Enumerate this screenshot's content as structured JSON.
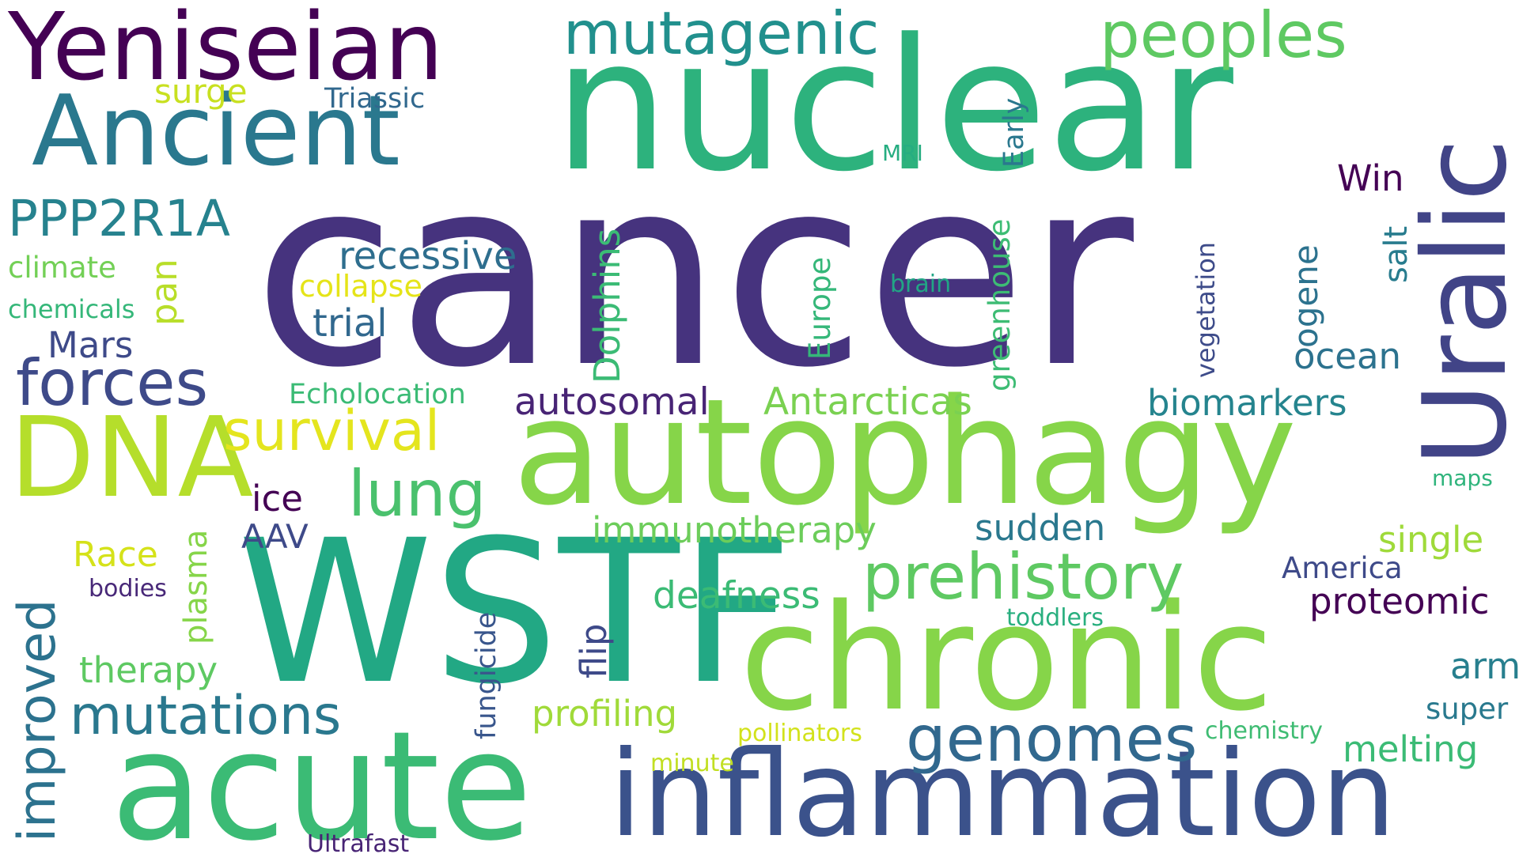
{
  "words": {
    "cancer": {
      "text": "cancer",
      "color": "#46337e"
    },
    "nuclear": {
      "text": "nuclear",
      "color": "#2db27d"
    },
    "wstf": {
      "text": "WSTF",
      "color": "#22a884"
    },
    "autophagy": {
      "text": "autophagy",
      "color": "#86d549"
    },
    "chronic": {
      "text": "chronic",
      "color": "#86d549"
    },
    "acute": {
      "text": "acute",
      "color": "#3bbb75"
    },
    "inflammation": {
      "text": "inflammation",
      "color": "#3b528b"
    },
    "uralic": {
      "text": "Uralic",
      "color": "#414487"
    },
    "yeniseian": {
      "text": "Yeniseian",
      "color": "#440154"
    },
    "ancient": {
      "text": "Ancient",
      "color": "#2a788e"
    },
    "dna": {
      "text": "DNA",
      "color": "#b5de2b"
    },
    "mutagenic": {
      "text": "mutagenic",
      "color": "#21908d"
    },
    "peoples": {
      "text": "peoples",
      "color": "#5ec962"
    },
    "prehistory": {
      "text": "prehistory",
      "color": "#5ec962"
    },
    "genomes": {
      "text": "genomes",
      "color": "#31688e"
    },
    "ppp2r1a": {
      "text": "PPP2R1A",
      "color": "#26828e"
    },
    "forces": {
      "text": "forces",
      "color": "#3e4a89"
    },
    "survival": {
      "text": "survival",
      "color": "#e4e51e"
    },
    "lung": {
      "text": "lung",
      "color": "#4ac16d"
    },
    "mutations": {
      "text": "mutations",
      "color": "#2a788e"
    },
    "improved": {
      "text": "improved",
      "color": "#2c728e"
    },
    "surge": {
      "text": "surge",
      "color": "#c8e020"
    },
    "triassic": {
      "text": "Triassic",
      "color": "#31688e"
    },
    "recessive": {
      "text": "recessive",
      "color": "#2e6e8e"
    },
    "trial": {
      "text": "trial",
      "color": "#31688e"
    },
    "collapse": {
      "text": "collapse",
      "color": "#e5e419"
    },
    "climate": {
      "text": "climate",
      "color": "#73d056"
    },
    "chemicals": {
      "text": "chemicals",
      "color": "#35b779"
    },
    "pan": {
      "text": "pan",
      "color": "#b8de29"
    },
    "mars": {
      "text": "Mars",
      "color": "#3e4a89"
    },
    "echolocation": {
      "text": "Echolocation",
      "color": "#3bbb75"
    },
    "autosomal": {
      "text": "autosomal",
      "color": "#482475"
    },
    "antarcticas": {
      "text": "Antarcticas",
      "color": "#7ad151"
    },
    "biomarkers": {
      "text": "biomarkers",
      "color": "#25848e"
    },
    "dolphins": {
      "text": "Dolphins",
      "color": "#3bbb75"
    },
    "europe": {
      "text": "Europe",
      "color": "#35b779"
    },
    "greenhouse": {
      "text": "greenhouse",
      "color": "#3dbc74"
    },
    "vegetation": {
      "text": "vegetation",
      "color": "#3e4c8a"
    },
    "ogene": {
      "text": "ogene",
      "color": "#2c728e"
    },
    "salt": {
      "text": "salt",
      "color": "#287c8e"
    },
    "win": {
      "text": "Win",
      "color": "#440154"
    },
    "early": {
      "text": "Early",
      "color": "#2a788e"
    },
    "mri": {
      "text": "MRI",
      "color": "#26ad81"
    },
    "brain": {
      "text": "brain",
      "color": "#21a685"
    },
    "ocean": {
      "text": "ocean",
      "color": "#2c728e"
    },
    "ice": {
      "text": "ice",
      "color": "#440154"
    },
    "aav": {
      "text": "AAV",
      "color": "#3e4a89"
    },
    "race": {
      "text": "Race",
      "color": "#d5e21a"
    },
    "bodies": {
      "text": "bodies",
      "color": "#482878"
    },
    "plasma": {
      "text": "plasma",
      "color": "#86d549"
    },
    "therapy": {
      "text": "therapy",
      "color": "#5ec962"
    },
    "immunotherapy": {
      "text": "immunotherapy",
      "color": "#6ccd5a"
    },
    "sudden": {
      "text": "sudden",
      "color": "#2a788e"
    },
    "single": {
      "text": "single",
      "color": "#9fda3a"
    },
    "america": {
      "text": "America",
      "color": "#3e4a89"
    },
    "proteomic": {
      "text": "proteomic",
      "color": "#440154"
    },
    "deafness": {
      "text": "deafness",
      "color": "#3bbb75"
    },
    "flip": {
      "text": "flip",
      "color": "#3e4a89"
    },
    "fungicide": {
      "text": "fungicide",
      "color": "#39568c"
    },
    "toddlers": {
      "text": "toddlers",
      "color": "#29af7f"
    },
    "profiling": {
      "text": "profiling",
      "color": "#a0da39"
    },
    "pollinators": {
      "text": "pollinators",
      "color": "#d2e21b"
    },
    "minute": {
      "text": "minute",
      "color": "#c2df23"
    },
    "ultrafast": {
      "text": "Ultrafast",
      "color": "#482475"
    },
    "arm": {
      "text": "arm",
      "color": "#277f8e"
    },
    "maps": {
      "text": "maps",
      "color": "#2fb47c"
    },
    "super": {
      "text": "super",
      "color": "#29798e"
    },
    "chemistry": {
      "text": "chemistry",
      "color": "#3fbc73"
    },
    "melting": {
      "text": "melting",
      "color": "#3bbb75"
    }
  }
}
